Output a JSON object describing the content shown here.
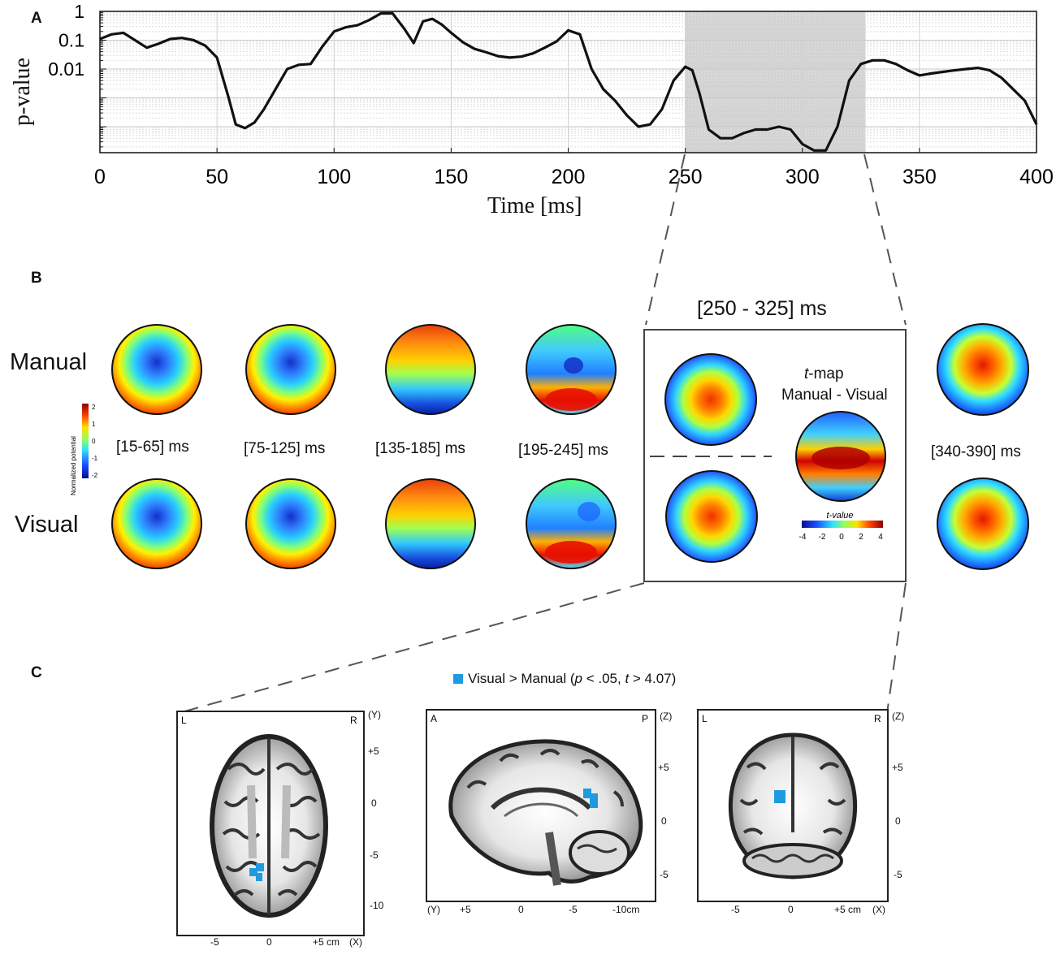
{
  "panels": {
    "a_letter": "A",
    "b_letter": "B",
    "c_letter": "C"
  },
  "chart_data": {
    "type": "line",
    "title": "",
    "xlabel": "Time [ms]",
    "ylabel": "p-value",
    "xlim": [
      0,
      400
    ],
    "ylim_log10": [
      -4.9,
      0
    ],
    "x_ticks": [
      0,
      50,
      100,
      150,
      200,
      250,
      300,
      350,
      400
    ],
    "x_tick_labels": [
      "0",
      "50",
      "100",
      "150",
      "200",
      "250",
      "300",
      "350",
      "400"
    ],
    "y_tick_labels": [
      "1",
      "0.1",
      "0.01"
    ],
    "y_tick_values": [
      1,
      0.1,
      0.01
    ],
    "highlight_range": [
      250,
      327
    ],
    "series": [
      {
        "name": "p-value",
        "x": [
          0,
          5,
          10,
          15,
          20,
          25,
          30,
          35,
          40,
          45,
          50,
          55,
          58,
          62,
          66,
          70,
          75,
          80,
          85,
          90,
          95,
          100,
          105,
          110,
          115,
          120,
          125,
          130,
          134,
          138,
          142,
          146,
          150,
          155,
          160,
          165,
          170,
          175,
          180,
          185,
          190,
          195,
          200,
          205,
          210,
          215,
          220,
          225,
          230,
          235,
          240,
          245,
          250,
          253,
          256,
          260,
          265,
          270,
          275,
          280,
          285,
          290,
          295,
          300,
          305,
          310,
          315,
          320,
          325,
          330,
          335,
          340,
          345,
          350,
          355,
          360,
          365,
          370,
          375,
          380,
          385,
          390,
          395,
          400
        ],
        "y": [
          0.11,
          0.16,
          0.18,
          0.1,
          0.055,
          0.075,
          0.11,
          0.12,
          0.1,
          0.065,
          0.025,
          0.001,
          0.00012,
          9e-05,
          0.00014,
          0.0004,
          0.002,
          0.01,
          0.014,
          0.015,
          0.06,
          0.2,
          0.28,
          0.33,
          0.5,
          0.85,
          0.85,
          0.25,
          0.08,
          0.45,
          0.55,
          0.35,
          0.18,
          0.085,
          0.05,
          0.038,
          0.028,
          0.025,
          0.027,
          0.035,
          0.055,
          0.09,
          0.22,
          0.16,
          0.01,
          0.002,
          0.0008,
          0.00025,
          0.0001,
          0.00012,
          0.0004,
          0.004,
          0.012,
          0.009,
          0.0015,
          8e-05,
          4e-05,
          4e-05,
          6e-05,
          8e-05,
          8e-05,
          0.0001,
          8e-05,
          2.5e-05,
          1.5e-05,
          1.5e-05,
          0.0001,
          0.004,
          0.015,
          0.02,
          0.02,
          0.015,
          0.009,
          0.006,
          0.007,
          0.008,
          0.009,
          0.01,
          0.011,
          0.009,
          0.005,
          0.002,
          0.0008,
          0.00012
        ]
      }
    ]
  },
  "topomaps": {
    "row_labels": {
      "manual": "Manual",
      "visual": "Visual"
    },
    "windows": [
      "[15-65] ms",
      "[75-125] ms",
      "[135-185] ms",
      "[195-245] ms"
    ],
    "zoom_title": "[250 - 325] ms",
    "last_window": "[340-390] ms",
    "tmap_title_italic": "t",
    "tmap_title_rest": "-map",
    "tmap_subtitle": "Manual - Visual",
    "colorbar_label": "Normalized potential",
    "colorbar_ticks": [
      "2",
      "1",
      "0",
      "-1",
      "-2"
    ],
    "tvalue_label": "t-value",
    "tvalue_ticks": [
      "-4",
      "-2",
      "0",
      "2",
      "4"
    ]
  },
  "mri": {
    "legend_text_1": "Visual > Manual (",
    "legend_p": "p",
    "legend_text_2": " < .05, ",
    "legend_t": "t",
    "legend_text_3": " > 4.07)",
    "highlight_color": "#1e9be0",
    "axial": {
      "left": "L",
      "right": "R",
      "axis": "(Y)",
      "y_ticks": [
        "+5",
        "0",
        "-5",
        "-10"
      ],
      "x_ticks": [
        "-5",
        "0",
        "+5 cm",
        "(X)"
      ]
    },
    "sagittal": {
      "left": "A",
      "right": "P",
      "axis": "(Z)",
      "y_ticks": [
        "+5",
        "0",
        "-5"
      ],
      "x_ticks": [
        "(Y)",
        "+5",
        "0",
        "-5",
        "-10cm"
      ]
    },
    "coronal": {
      "left": "L",
      "right": "R",
      "axis": "(Z)",
      "y_ticks": [
        "+5",
        "0",
        "-5"
      ],
      "x_ticks": [
        "-5",
        "0",
        "+5 cm",
        "(X)"
      ]
    }
  },
  "colors": {
    "line": "#111111",
    "highlight": "#d3d3d3",
    "marker": "#1e9be0"
  }
}
